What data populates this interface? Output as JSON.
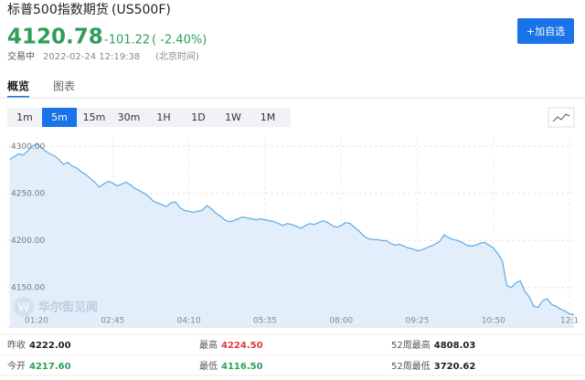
{
  "header": {
    "title": "标普500指数期货",
    "symbol": "(US500F)",
    "price": "4120.78",
    "change": "-101.22",
    "change_pct": "( -2.40%)",
    "status": "交易中",
    "time": "2022-02-24 12:19:38",
    "timezone": "(北京时间)",
    "button": "+加自选"
  },
  "tabs": [
    "概览",
    "图表"
  ],
  "periods": [
    "1m",
    "5m",
    "15m",
    "30m",
    "1H",
    "1D",
    "1W",
    "1M"
  ],
  "watermark": "华尔街见闻",
  "chart_data": {
    "type": "area",
    "color": "#5aa9e6",
    "fill": "#e2effa",
    "grid": true,
    "ylim": [
      4108,
      4310
    ],
    "yticks": [
      {
        "value": 4150,
        "label": "4150.00"
      },
      {
        "value": 4200,
        "label": "4200.00"
      },
      {
        "value": 4250,
        "label": "4250.00"
      },
      {
        "value": 4300,
        "label": "4300.00"
      }
    ],
    "categories": [
      null,
      null,
      null,
      null,
      null,
      null,
      "01:20",
      null,
      null,
      null,
      null,
      null,
      null,
      null,
      null,
      null,
      null,
      null,
      null,
      null,
      null,
      null,
      null,
      "02:45",
      null,
      null,
      null,
      null,
      null,
      null,
      null,
      null,
      null,
      null,
      null,
      null,
      null,
      null,
      null,
      null,
      "04:10",
      null,
      null,
      null,
      null,
      null,
      null,
      null,
      null,
      null,
      null,
      null,
      null,
      null,
      null,
      null,
      null,
      "05:35",
      null,
      null,
      null,
      null,
      null,
      null,
      null,
      null,
      null,
      null,
      null,
      null,
      null,
      null,
      null,
      null,
      "08:00",
      null,
      null,
      null,
      null,
      null,
      null,
      null,
      null,
      null,
      null,
      null,
      null,
      null,
      null,
      null,
      null,
      "09:25",
      null,
      null,
      null,
      null,
      null,
      null,
      null,
      null,
      null,
      null,
      null,
      null,
      null,
      null,
      null,
      null,
      "10:50",
      null,
      null,
      null,
      null,
      null,
      null,
      null,
      null,
      null,
      null,
      null,
      null,
      null,
      null,
      null,
      null,
      "12:1",
      null
    ],
    "values": [
      4286,
      4289,
      4292,
      4291,
      4295,
      4300,
      4303,
      4299,
      4295,
      4292,
      4290,
      4286,
      4281,
      4283,
      4279,
      4277,
      4273,
      4270,
      4266,
      4262,
      4257,
      4260,
      4263,
      4261,
      4258,
      4260,
      4262,
      4259,
      4255,
      4253,
      4250,
      4247,
      4242,
      4240,
      4238,
      4236,
      4240,
      4241,
      4235,
      4232,
      4231,
      4230,
      4231,
      4232,
      4237,
      4234,
      4229,
      4226,
      4222,
      4220,
      4221,
      4223,
      4225,
      4224,
      4223,
      4222,
      4223,
      4222,
      4221,
      4220,
      4218,
      4216,
      4218,
      4217,
      4215,
      4213,
      4216,
      4218,
      4217,
      4219,
      4221,
      4219,
      4216,
      4214,
      4216,
      4219,
      4218,
      4214,
      4210,
      4205,
      4202,
      4201,
      4201,
      4200,
      4200,
      4197,
      4195,
      4196,
      4194,
      4192,
      4191,
      4189,
      4190,
      4192,
      4194,
      4196,
      4199,
      4206,
      4203,
      4201,
      4200,
      4198,
      4195,
      4194,
      4195,
      4197,
      4198,
      4195,
      4192,
      4186,
      4178,
      4152,
      4150,
      4155,
      4157,
      4146,
      4140,
      4130,
      4129,
      4136,
      4138,
      4132,
      4130,
      4127,
      4125,
      4122,
      4121
    ]
  },
  "stats": [
    {
      "label": "昨收",
      "value": "4222.00",
      "color": "#222222"
    },
    {
      "label": "最高",
      "value": "4224.50",
      "color": "#e0393e"
    },
    {
      "label": "52周最高",
      "value": "4808.03",
      "color": "#222222"
    },
    {
      "label": "今开",
      "value": "4217.60",
      "color": "#2e9e5b"
    },
    {
      "label": "最低",
      "value": "4116.50",
      "color": "#2e9e5b"
    },
    {
      "label": "52周最低",
      "value": "3720.62",
      "color": "#222222"
    }
  ]
}
